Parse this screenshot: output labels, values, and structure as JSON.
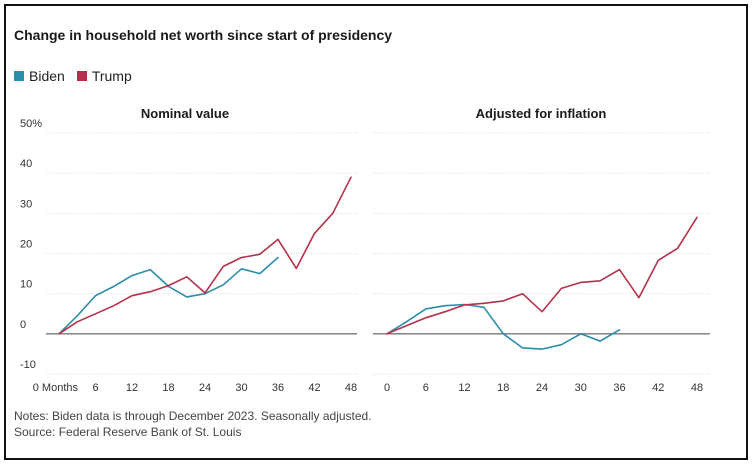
{
  "title": "Change in household net worth since start of presidency",
  "legend": [
    {
      "name": "Biden",
      "color": "#2a8eaa"
    },
    {
      "name": "Trump",
      "color": "#b5304a"
    }
  ],
  "notes": "Notes: Biden data is through December 2023. Seasonally adjusted.",
  "source": "Source: Federal Reserve Bank of St. Louis",
  "chart_data": [
    {
      "type": "line",
      "title": "Nominal value",
      "xlabel": "",
      "ylabel": "",
      "x_ticks": [
        "0 Months",
        "6",
        "12",
        "18",
        "24",
        "30",
        "36",
        "42",
        "48"
      ],
      "y_ticks": [
        "50%",
        "40",
        "30",
        "20",
        "10",
        "0",
        "-10"
      ],
      "xlim": [
        0,
        48
      ],
      "ylim": [
        -10,
        50
      ],
      "grid": true,
      "series": [
        {
          "name": "Biden",
          "color": "#2a8eaa",
          "x": [
            0,
            3,
            6,
            9,
            12,
            15,
            18,
            21,
            24,
            27,
            30,
            33,
            36
          ],
          "y": [
            0,
            4.5,
            9.5,
            11.8,
            14.5,
            16,
            11.8,
            9.2,
            10,
            12.2,
            16.2,
            15,
            19
          ]
        },
        {
          "name": "Trump",
          "color": "#b5304a",
          "x": [
            0,
            3,
            6,
            9,
            12,
            15,
            18,
            21,
            24,
            27,
            30,
            33,
            36,
            39,
            42,
            45,
            48
          ],
          "y": [
            0,
            3,
            5,
            7,
            9.5,
            10.5,
            12,
            14.2,
            10.2,
            16.8,
            19,
            19.8,
            23.5,
            16.3,
            25,
            30,
            39
          ]
        }
      ]
    },
    {
      "type": "line",
      "title": "Adjusted for inflation",
      "xlabel": "",
      "ylabel": "",
      "x_ticks": [
        "0",
        "6",
        "12",
        "18",
        "24",
        "30",
        "36",
        "42",
        "48"
      ],
      "xlim": [
        0,
        48
      ],
      "ylim": [
        -10,
        50
      ],
      "grid": true,
      "series": [
        {
          "name": "Biden",
          "color": "#2a8eaa",
          "x": [
            0,
            3,
            6,
            9,
            12,
            15,
            18,
            21,
            24,
            27,
            30,
            33,
            36
          ],
          "y": [
            0,
            3,
            6.2,
            7,
            7.3,
            6.6,
            0,
            -3.5,
            -3.8,
            -2.7,
            0,
            -1.8,
            1
          ]
        },
        {
          "name": "Trump",
          "color": "#b5304a",
          "x": [
            0,
            3,
            6,
            9,
            12,
            15,
            18,
            21,
            24,
            27,
            30,
            33,
            36,
            39,
            42,
            45,
            48
          ],
          "y": [
            0,
            2,
            4,
            5.5,
            7.2,
            7.6,
            8.2,
            10,
            5.5,
            11.3,
            12.8,
            13.2,
            16,
            9,
            18.3,
            21.3,
            29
          ]
        }
      ]
    }
  ]
}
